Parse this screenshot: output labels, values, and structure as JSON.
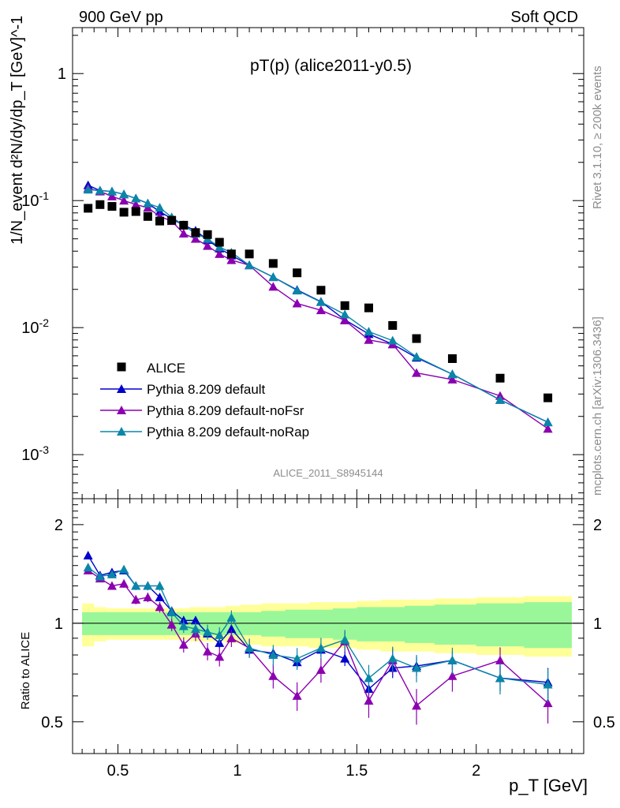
{
  "header": {
    "left": "900 GeV pp",
    "right": "Soft QCD"
  },
  "side_text": {
    "rivet": "Rivet 3.1.10, ≥ 200k events",
    "source": "mcplots.cern.ch [arXiv:1306.3436]"
  },
  "chart_data": {
    "type": "scatter",
    "title": "pT(p) (alice2011-y0.5)",
    "watermark": "ALICE_2011_S8945144",
    "xlabel": "p_T [GeV]",
    "ylabel_top": "1/N_event d²N/dy/dp_T [GeV]^-1",
    "ylabel_bottom": "Ratio to ALICE",
    "xlim": [
      0.31,
      2.45
    ],
    "ylim_top": [
      0.00045,
      2.3
    ],
    "y_scale_top": "log",
    "ylim_bottom": [
      0.4,
      2.4
    ],
    "y_scale_bottom": "log",
    "x_ticks": [
      "0.5",
      "1",
      "1.5",
      "2"
    ],
    "y_ticks_top": [
      "1",
      "10^-1",
      "10^-2",
      "10^-3"
    ],
    "y_ticks_bottom": [
      "2",
      "1",
      "0.5"
    ],
    "legend": {
      "position": "bottom-left",
      "entries": [
        "ALICE",
        "Pythia 8.209 default",
        "Pythia 8.209 default-noFsr",
        "Pythia 8.209 default-noRap"
      ]
    },
    "colors": {
      "ALICE": "#000000",
      "default": "#0000cc",
      "noFsr": "#8b00b0",
      "noRap": "#0a86a8",
      "band_inner": "#99f799",
      "band_outer": "#ffff99"
    },
    "x": [
      0.375,
      0.425,
      0.475,
      0.525,
      0.575,
      0.625,
      0.675,
      0.725,
      0.775,
      0.825,
      0.875,
      0.925,
      0.975,
      1.05,
      1.15,
      1.25,
      1.35,
      1.45,
      1.55,
      1.65,
      1.75,
      1.9,
      2.1,
      2.3
    ],
    "data": {
      "name": "ALICE",
      "values": [
        0.087,
        0.093,
        0.09,
        0.081,
        0.082,
        0.075,
        0.069,
        0.07,
        0.064,
        0.056,
        0.054,
        0.047,
        0.038,
        0.038,
        0.032,
        0.027,
        0.0197,
        0.0149,
        0.0143,
        0.0104,
        0.0082,
        0.0057,
        0.004,
        0.0028
      ],
      "band_inner_rel": [
        0.08,
        0.08,
        0.08,
        0.08,
        0.08,
        0.08,
        0.08,
        0.08,
        0.08,
        0.08,
        0.08,
        0.08,
        0.08,
        0.08,
        0.09,
        0.1,
        0.1,
        0.11,
        0.12,
        0.12,
        0.13,
        0.14,
        0.15,
        0.16
      ],
      "band_outer_rel": [
        0.15,
        0.12,
        0.11,
        0.11,
        0.11,
        0.11,
        0.11,
        0.11,
        0.11,
        0.12,
        0.12,
        0.12,
        0.13,
        0.14,
        0.15,
        0.15,
        0.16,
        0.16,
        0.17,
        0.18,
        0.18,
        0.19,
        0.2,
        0.21
      ]
    },
    "series": [
      {
        "name": "Pythia 8.209 default",
        "key": "default",
        "values": [
          0.132,
          0.12,
          0.118,
          0.112,
          0.104,
          0.095,
          0.082,
          0.072,
          0.064,
          0.058,
          0.049,
          0.042,
          0.037,
          0.031,
          0.025,
          0.0198,
          0.016,
          0.0115,
          0.0089,
          0.0074,
          0.0058,
          0.0043,
          0.0027,
          0.0018
        ],
        "ratio": [
          1.61,
          1.4,
          1.43,
          1.45,
          1.3,
          1.3,
          1.2,
          1.09,
          1.02,
          1.02,
          0.93,
          0.87,
          0.96,
          0.83,
          0.81,
          0.76,
          0.83,
          0.78,
          0.63,
          0.73,
          0.74,
          0.77,
          0.68,
          0.66
        ],
        "ratio_err": [
          0.02,
          0.02,
          0.02,
          0.02,
          0.02,
          0.02,
          0.02,
          0.02,
          0.03,
          0.03,
          0.03,
          0.03,
          0.03,
          0.03,
          0.03,
          0.03,
          0.04,
          0.04,
          0.05,
          0.05,
          0.05,
          0.05,
          0.06,
          0.07
        ]
      },
      {
        "name": "Pythia 8.209 default-noFsr",
        "key": "noFsr",
        "values": [
          0.125,
          0.118,
          0.108,
          0.1,
          0.093,
          0.088,
          0.075,
          0.069,
          0.055,
          0.05,
          0.044,
          0.038,
          0.034,
          0.031,
          0.021,
          0.0155,
          0.0137,
          0.0114,
          0.008,
          0.0074,
          0.0044,
          0.0039,
          0.0029,
          0.0016
        ],
        "ratio": [
          1.45,
          1.37,
          1.3,
          1.32,
          1.18,
          1.2,
          1.12,
          0.99,
          0.86,
          0.93,
          0.82,
          0.79,
          0.9,
          0.84,
          0.69,
          0.6,
          0.72,
          0.88,
          0.58,
          0.77,
          0.56,
          0.69,
          0.77,
          0.57
        ]
      },
      {
        "name": "Pythia 8.209 default-noRap",
        "key": "noRap",
        "values": [
          0.122,
          0.12,
          0.118,
          0.112,
          0.104,
          0.095,
          0.088,
          0.074,
          0.064,
          0.055,
          0.05,
          0.043,
          0.039,
          0.031,
          0.025,
          0.0196,
          0.0159,
          0.0127,
          0.0093,
          0.0079,
          0.0059,
          0.0043,
          0.0027,
          0.0018
        ],
        "ratio": [
          1.48,
          1.39,
          1.41,
          1.46,
          1.3,
          1.3,
          1.3,
          1.08,
          0.98,
          0.96,
          0.94,
          0.92,
          1.04,
          0.84,
          0.8,
          0.78,
          0.84,
          0.89,
          0.68,
          0.78,
          0.73,
          0.77,
          0.68,
          0.65
        ]
      }
    ]
  }
}
